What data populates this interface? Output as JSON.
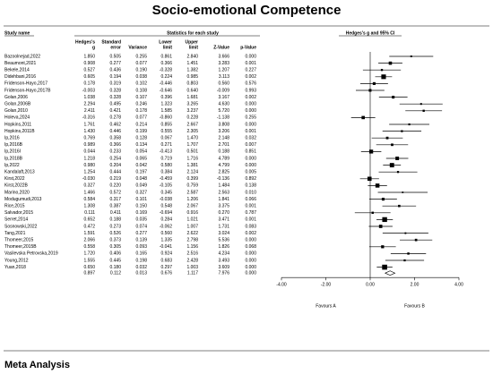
{
  "title": "Socio-emotional Competence",
  "footer": "Meta Analysis",
  "headers": {
    "study": "Study name",
    "stats": "Statistics for each study",
    "plot": "Hedges's g and 95% CI"
  },
  "columns": [
    [
      "Hedges's",
      "g"
    ],
    [
      "Standard",
      "error"
    ],
    [
      "Variance"
    ],
    [
      "Lower",
      "limit"
    ],
    [
      "Upper",
      "limit"
    ],
    [
      "Z-Value"
    ],
    [
      "p-Value"
    ]
  ],
  "rows": [
    [
      "Bazoolnejad,2022",
      "1.850",
      "0.505",
      "0.255",
      "0.861",
      "2.840",
      "3.666",
      "0.000"
    ],
    [
      "Beaumont,2021",
      "0.908",
      "0.277",
      "0.077",
      "0.366",
      "1.451",
      "3.283",
      "0.001"
    ],
    [
      "Bekele,2014",
      "0.527",
      "0.436",
      "0.190",
      "-0.328",
      "1.382",
      "1.207",
      "0.227"
    ],
    [
      "Didehbani,2016",
      "0.605",
      "0.194",
      "0.038",
      "0.224",
      "0.985",
      "3.113",
      "0.002"
    ],
    [
      "Fridenson-Hayo,2017",
      "0.178",
      "0.319",
      "0.102",
      "-0.446",
      "0.803",
      "0.560",
      "0.576"
    ],
    [
      "Fridenson-Hayo,2017B",
      "-0.003",
      "0.328",
      "0.108",
      "-0.646",
      "0.640",
      "-0.009",
      "0.993"
    ],
    [
      "Golan,2006",
      "1.038",
      "0.328",
      "0.107",
      "0.396",
      "1.681",
      "3.167",
      "0.002"
    ],
    [
      "Golan,2006B",
      "2.294",
      "0.495",
      "0.246",
      "1.323",
      "3.265",
      "4.630",
      "0.000"
    ],
    [
      "Golan,2010",
      "2.411",
      "0.421",
      "0.178",
      "1.585",
      "3.237",
      "5.720",
      "0.000"
    ],
    [
      "Holeva,2024",
      "-0.316",
      "0.278",
      "0.077",
      "-0.860",
      "0.228",
      "-1.138",
      "0.255"
    ],
    [
      "Hopkins,2011",
      "1.761",
      "0.462",
      "0.214",
      "0.855",
      "2.667",
      "3.808",
      "0.000"
    ],
    [
      "Hopkins,2011B",
      "1.430",
      "0.446",
      "0.199",
      "0.555",
      "2.305",
      "3.206",
      "0.001"
    ],
    [
      "Ip,2016",
      "0.769",
      "0.358",
      "0.128",
      "0.067",
      "1.470",
      "2.148",
      "0.032"
    ],
    [
      "Ip,2016B",
      "0.989",
      "0.366",
      "0.134",
      "0.271",
      "1.707",
      "2.701",
      "0.007"
    ],
    [
      "Ip,2016I",
      "0.044",
      "0.233",
      "0.054",
      "-0.413",
      "0.501",
      "0.188",
      "0.851"
    ],
    [
      "Ip,2018B",
      "1.218",
      "0.254",
      "0.065",
      "0.719",
      "1.716",
      "4.789",
      "0.000"
    ],
    [
      "Ip,2022",
      "0.980",
      "0.204",
      "0.042",
      "0.580",
      "1.381",
      "4.799",
      "0.000"
    ],
    [
      "Kandalaft,2013",
      "1.254",
      "0.444",
      "0.197",
      "0.384",
      "2.124",
      "2.825",
      "0.005"
    ],
    [
      "Kirst,2022",
      "-0.030",
      "0.219",
      "0.048",
      "-0.459",
      "0.399",
      "-0.136",
      "0.892"
    ],
    [
      "Kirst,2022B",
      "0.327",
      "0.220",
      "0.049",
      "-0.105",
      "0.759",
      "1.484",
      "0.138"
    ],
    [
      "Marino,2020",
      "1.466",
      "0.572",
      "0.327",
      "0.345",
      "2.587",
      "2.563",
      "0.010"
    ],
    [
      "Modugumudi,2013",
      "0.584",
      "0.317",
      "0.101",
      "-0.038",
      "1.206",
      "1.841",
      "0.066"
    ],
    [
      "Rice,2015",
      "1.308",
      "0.387",
      "0.150",
      "0.548",
      "2.067",
      "3.375",
      "0.001"
    ],
    [
      "Salvador,2015",
      "0.111",
      "0.411",
      "0.169",
      "-0.694",
      "0.916",
      "0.270",
      "0.787"
    ],
    [
      "Serret,2014",
      "0.652",
      "0.188",
      "0.035",
      "0.284",
      "1.021",
      "3.471",
      "0.001"
    ],
    [
      "Sosnowski,2022",
      "0.472",
      "0.273",
      "0.074",
      "-0.062",
      "1.007",
      "1.731",
      "0.083"
    ],
    [
      "Tang,2021",
      "1.591",
      "0.526",
      "0.277",
      "0.560",
      "2.622",
      "3.024",
      "0.002"
    ],
    [
      "Thomeer,2015",
      "2.066",
      "0.373",
      "0.139",
      "1.335",
      "2.798",
      "5.536",
      "0.000"
    ],
    [
      "Thomeer,2015B",
      "0.558",
      "0.305",
      "0.093",
      "-0.041",
      "1.156",
      "1.826",
      "0.068"
    ],
    [
      "Vasilevska Petrovska,2019",
      "1.720",
      "0.406",
      "0.165",
      "0.924",
      "2.516",
      "4.234",
      "0.000"
    ],
    [
      "Young,2012",
      "1.555",
      "0.445",
      "0.198",
      "0.683",
      "2.428",
      "3.493",
      "0.000"
    ],
    [
      "Yuan,2018",
      "0.650",
      "0.180",
      "0.032",
      "0.297",
      "1.003",
      "3.609",
      "0.000"
    ]
  ],
  "summary": [
    "0.897",
    "0.112",
    "0.013",
    "0.676",
    "1.117",
    "7.976",
    "0.000"
  ],
  "plot": {
    "xlim": [
      -4,
      4
    ],
    "xticks": [
      {
        "value": -4,
        "label": "-4.00"
      },
      {
        "value": -2,
        "label": "-2.00"
      },
      {
        "value": 0,
        "label": "0.00"
      },
      {
        "value": 2,
        "label": "2.00"
      },
      {
        "value": 4,
        "label": "4.00"
      }
    ],
    "left_label": "Favours A",
    "right_label": "Favours B"
  }
}
